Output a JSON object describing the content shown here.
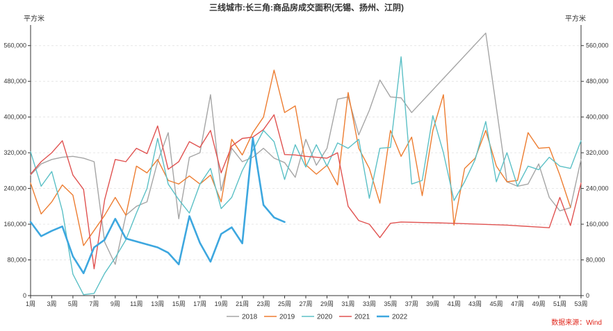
{
  "chart_data": {
    "type": "line",
    "title": "三线城市:长三角:商品房成交面积(无锡、扬州、江阴)",
    "left_unit": "平方米",
    "right_unit": "平方米",
    "source": "数据来源：Wind",
    "ylim": [
      0,
      600000
    ],
    "yticks": [
      0,
      80000,
      160000,
      240000,
      320000,
      400000,
      480000,
      560000
    ],
    "ytick_labels": [
      "0",
      "80,000",
      "160,000",
      "240,000",
      "320,000",
      "400,000",
      "480,000",
      "560,000"
    ],
    "xlim": [
      1,
      53
    ],
    "xticks": [
      1,
      3,
      5,
      7,
      9,
      11,
      13,
      15,
      17,
      19,
      21,
      23,
      25,
      27,
      29,
      31,
      33,
      35,
      37,
      39,
      41,
      43,
      45,
      47,
      49,
      51,
      53
    ],
    "xtick_labels": [
      "1周",
      "3周",
      "5周",
      "7周",
      "9周",
      "11周",
      "13周",
      "15周",
      "17周",
      "19周",
      "21周",
      "23周",
      "25周",
      "27周",
      "29周",
      "31周",
      "33周",
      "35周",
      "37周",
      "39周",
      "41周",
      "43周",
      "45周",
      "47周",
      "49周",
      "51周",
      "53周"
    ],
    "legend_position": "bottom",
    "series": [
      {
        "name": "2018",
        "color": "#a5a5a5",
        "width": 1.4,
        "points": [
          [
            1,
            270000
          ],
          [
            2,
            295000
          ],
          [
            3,
            305000
          ],
          [
            4,
            310000
          ],
          [
            5,
            312000
          ],
          [
            6,
            308000
          ],
          [
            7,
            300000
          ],
          [
            8,
            120000
          ],
          [
            9,
            70000
          ],
          [
            10,
            180000
          ],
          [
            11,
            200000
          ],
          [
            12,
            210000
          ],
          [
            13,
            300000
          ],
          [
            14,
            365000
          ],
          [
            15,
            172000
          ],
          [
            16,
            310000
          ],
          [
            17,
            320000
          ],
          [
            18,
            450000
          ],
          [
            19,
            235000
          ],
          [
            20,
            330000
          ],
          [
            21,
            300000
          ],
          [
            22,
            310000
          ],
          [
            23,
            330000
          ],
          [
            24,
            308000
          ],
          [
            25,
            298000
          ],
          [
            26,
            265000
          ],
          [
            27,
            350000
          ],
          [
            28,
            292000
          ],
          [
            29,
            330000
          ],
          [
            30,
            440000
          ],
          [
            31,
            445000
          ],
          [
            32,
            360000
          ],
          [
            33,
            415000
          ],
          [
            34,
            483000
          ],
          [
            35,
            445000
          ],
          [
            36,
            443000
          ],
          [
            37,
            410000
          ],
          [
            44,
            588000
          ],
          [
            46,
            255000
          ],
          [
            47,
            245000
          ],
          [
            48,
            250000
          ],
          [
            49,
            295000
          ],
          [
            50,
            220000
          ],
          [
            51,
            190000
          ],
          [
            52,
            197000
          ],
          [
            53,
            305000
          ]
        ]
      },
      {
        "name": "2019",
        "color": "#ed7d31",
        "width": 1.4,
        "points": [
          [
            1,
            252000
          ],
          [
            2,
            183000
          ],
          [
            3,
            210000
          ],
          [
            4,
            248000
          ],
          [
            5,
            225000
          ],
          [
            6,
            112000
          ],
          [
            8,
            180000
          ],
          [
            9,
            220000
          ],
          [
            10,
            180000
          ],
          [
            11,
            290000
          ],
          [
            12,
            275000
          ],
          [
            13,
            305000
          ],
          [
            14,
            258000
          ],
          [
            15,
            250000
          ],
          [
            16,
            268000
          ],
          [
            17,
            250000
          ],
          [
            18,
            270000
          ],
          [
            19,
            210000
          ],
          [
            20,
            350000
          ],
          [
            21,
            315000
          ],
          [
            22,
            365000
          ],
          [
            23,
            400000
          ],
          [
            24,
            505000
          ],
          [
            25,
            410000
          ],
          [
            26,
            425000
          ],
          [
            27,
            293000
          ],
          [
            28,
            272000
          ],
          [
            29,
            292000
          ],
          [
            30,
            248000
          ],
          [
            31,
            455000
          ],
          [
            32,
            330000
          ],
          [
            33,
            285000
          ],
          [
            34,
            207000
          ],
          [
            35,
            370000
          ],
          [
            36,
            312000
          ],
          [
            37,
            355000
          ],
          [
            38,
            224000
          ],
          [
            39,
            370000
          ],
          [
            40,
            450000
          ],
          [
            41,
            158000
          ],
          [
            42,
            285000
          ],
          [
            43,
            308000
          ],
          [
            44,
            370000
          ],
          [
            45,
            290000
          ],
          [
            46,
            255000
          ],
          [
            47,
            258000
          ],
          [
            48,
            365000
          ],
          [
            49,
            330000
          ],
          [
            50,
            332000
          ],
          [
            51,
            270000
          ],
          [
            52,
            198000
          ]
        ]
      },
      {
        "name": "2020",
        "color": "#5bc0c6",
        "width": 1.4,
        "points": [
          [
            1,
            322000
          ],
          [
            2,
            245000
          ],
          [
            3,
            278000
          ],
          [
            4,
            190000
          ],
          [
            5,
            48000
          ],
          [
            6,
            2000
          ],
          [
            7,
            5000
          ],
          [
            8,
            50000
          ],
          [
            9,
            85000
          ],
          [
            10,
            125000
          ],
          [
            11,
            185000
          ],
          [
            12,
            240000
          ],
          [
            13,
            352000
          ],
          [
            14,
            250000
          ],
          [
            15,
            215000
          ],
          [
            16,
            185000
          ],
          [
            17,
            250000
          ],
          [
            18,
            285000
          ],
          [
            19,
            195000
          ],
          [
            20,
            220000
          ],
          [
            21,
            280000
          ],
          [
            22,
            325000
          ],
          [
            23,
            370000
          ],
          [
            24,
            345000
          ],
          [
            25,
            260000
          ],
          [
            26,
            338000
          ],
          [
            27,
            288000
          ],
          [
            28,
            338000
          ],
          [
            29,
            290000
          ],
          [
            30,
            342000
          ],
          [
            31,
            330000
          ],
          [
            32,
            350000
          ],
          [
            33,
            218000
          ],
          [
            34,
            330000
          ],
          [
            35,
            332000
          ],
          [
            36,
            535000
          ],
          [
            37,
            250000
          ],
          [
            38,
            258000
          ],
          [
            39,
            403000
          ],
          [
            40,
            320000
          ],
          [
            41,
            213000
          ],
          [
            42,
            255000
          ],
          [
            43,
            305000
          ],
          [
            44,
            390000
          ],
          [
            45,
            255000
          ],
          [
            46,
            320000
          ],
          [
            47,
            245000
          ],
          [
            48,
            290000
          ],
          [
            49,
            282000
          ],
          [
            50,
            310000
          ],
          [
            51,
            290000
          ],
          [
            52,
            285000
          ],
          [
            53,
            347000
          ]
        ]
      },
      {
        "name": "2021",
        "color": "#e05250",
        "width": 1.4,
        "points": [
          [
            1,
            272000
          ],
          [
            2,
            300000
          ],
          [
            3,
            320000
          ],
          [
            4,
            347000
          ],
          [
            5,
            270000
          ],
          [
            6,
            238000
          ],
          [
            7,
            60000
          ],
          [
            8,
            215000
          ],
          [
            9,
            305000
          ],
          [
            10,
            300000
          ],
          [
            11,
            330000
          ],
          [
            12,
            318000
          ],
          [
            13,
            380000
          ],
          [
            14,
            283000
          ],
          [
            15,
            300000
          ],
          [
            16,
            345000
          ],
          [
            17,
            332000
          ],
          [
            18,
            370000
          ],
          [
            19,
            275000
          ],
          [
            20,
            335000
          ],
          [
            21,
            352000
          ],
          [
            22,
            355000
          ],
          [
            23,
            372000
          ],
          [
            24,
            405000
          ],
          [
            25,
            316000
          ],
          [
            26,
            315000
          ],
          [
            27,
            312000
          ],
          [
            28,
            310000
          ],
          [
            29,
            308000
          ],
          [
            30,
            320000
          ],
          [
            31,
            200000
          ],
          [
            32,
            168000
          ],
          [
            33,
            160000
          ],
          [
            34,
            130000
          ],
          [
            35,
            162000
          ],
          [
            36,
            165000
          ],
          [
            41,
            162000
          ],
          [
            46,
            158000
          ],
          [
            50,
            152000
          ],
          [
            51,
            220000
          ],
          [
            52,
            157000
          ],
          [
            53,
            252000
          ]
        ]
      },
      {
        "name": "2022",
        "color": "#3da7df",
        "width": 2.6,
        "points": [
          [
            1,
            165000
          ],
          [
            2,
            133000
          ],
          [
            3,
            145000
          ],
          [
            4,
            155000
          ],
          [
            5,
            88000
          ],
          [
            6,
            50000
          ],
          [
            7,
            108000
          ],
          [
            8,
            125000
          ],
          [
            9,
            172000
          ],
          [
            10,
            128000
          ],
          [
            13,
            108000
          ],
          [
            14,
            96000
          ],
          [
            15,
            70000
          ],
          [
            16,
            178000
          ],
          [
            17,
            118000
          ],
          [
            18,
            76000
          ],
          [
            19,
            138000
          ],
          [
            20,
            153000
          ],
          [
            21,
            117000
          ],
          [
            22,
            353000
          ],
          [
            23,
            203000
          ],
          [
            24,
            175000
          ],
          [
            25,
            165000
          ]
        ]
      }
    ]
  }
}
